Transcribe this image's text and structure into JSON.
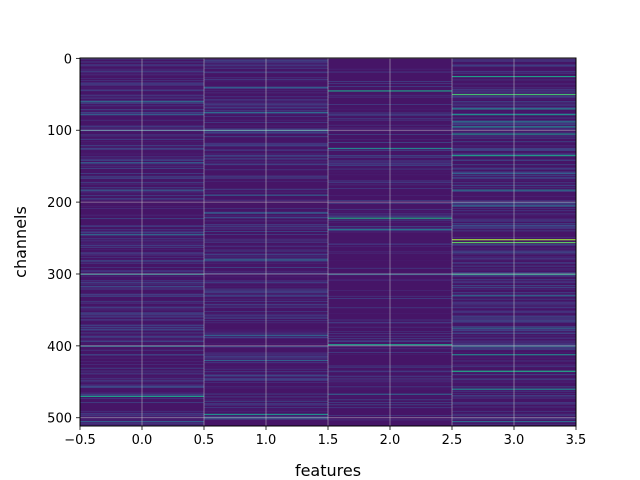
{
  "chart_data": {
    "type": "heatmap",
    "title": "",
    "xlabel": "features",
    "ylabel": "channels",
    "x_columns": [
      0,
      1,
      2,
      3
    ],
    "n_channels": 512,
    "xlim": [
      -0.5,
      3.5
    ],
    "ylim": [
      511.5,
      -0.5
    ],
    "y_inverted": true,
    "xticks": [
      -0.5,
      0.0,
      0.5,
      1.0,
      1.5,
      2.0,
      2.5,
      3.0,
      3.5
    ],
    "xtick_labels": [
      "−0.5",
      "0.0",
      "0.5",
      "1.0",
      "1.5",
      "2.0",
      "2.5",
      "3.0",
      "3.5"
    ],
    "yticks": [
      0,
      100,
      200,
      300,
      400,
      500
    ],
    "ytick_labels": [
      "0",
      "100",
      "200",
      "300",
      "400",
      "500"
    ],
    "grid": true,
    "colormap": "viridis",
    "value_range": [
      0,
      1
    ],
    "background_value": 0.06,
    "noise_level": 0.18,
    "noise_density": [
      0.45,
      0.4,
      0.22,
      0.5
    ],
    "bright_channels": [
      {
        "x": 0,
        "rows": [
          {
            "channel": 60,
            "value": 0.35
          },
          {
            "channel": 78,
            "value": 0.3
          },
          {
            "channel": 100,
            "value": 0.3
          },
          {
            "channel": 145,
            "value": 0.3
          },
          {
            "channel": 183,
            "value": 0.3
          },
          {
            "channel": 245,
            "value": 0.35
          },
          {
            "channel": 300,
            "value": 0.45
          },
          {
            "channel": 400,
            "value": 0.4
          },
          {
            "channel": 470,
            "value": 0.55
          },
          {
            "channel": 505,
            "value": 0.3
          }
        ]
      },
      {
        "x": 1,
        "rows": [
          {
            "channel": 40,
            "value": 0.3
          },
          {
            "channel": 75,
            "value": 0.35
          },
          {
            "channel": 100,
            "value": 0.4
          },
          {
            "channel": 190,
            "value": 0.3
          },
          {
            "channel": 215,
            "value": 0.3
          },
          {
            "channel": 280,
            "value": 0.35
          },
          {
            "channel": 385,
            "value": 0.3
          },
          {
            "channel": 420,
            "value": 0.3
          },
          {
            "channel": 495,
            "value": 0.5
          },
          {
            "channel": 500,
            "value": 0.3
          }
        ]
      },
      {
        "x": 2,
        "rows": [
          {
            "channel": 45,
            "value": 0.55
          },
          {
            "channel": 125,
            "value": 0.45
          },
          {
            "channel": 222,
            "value": 0.6
          },
          {
            "channel": 238,
            "value": 0.4
          },
          {
            "channel": 300,
            "value": 0.35
          },
          {
            "channel": 398,
            "value": 0.55
          },
          {
            "channel": 467,
            "value": 0.3
          }
        ]
      },
      {
        "x": 3,
        "rows": [
          {
            "channel": 25,
            "value": 0.55
          },
          {
            "channel": 50,
            "value": 0.7
          },
          {
            "channel": 70,
            "value": 0.45
          },
          {
            "channel": 78,
            "value": 0.5
          },
          {
            "channel": 88,
            "value": 0.4
          },
          {
            "channel": 95,
            "value": 0.45
          },
          {
            "channel": 105,
            "value": 0.5
          },
          {
            "channel": 135,
            "value": 0.55
          },
          {
            "channel": 160,
            "value": 0.3
          },
          {
            "channel": 183,
            "value": 0.4
          },
          {
            "channel": 205,
            "value": 0.35
          },
          {
            "channel": 252,
            "value": 0.85
          },
          {
            "channel": 256,
            "value": 0.75
          },
          {
            "channel": 300,
            "value": 0.6
          },
          {
            "channel": 330,
            "value": 0.35
          },
          {
            "channel": 375,
            "value": 0.35
          },
          {
            "channel": 400,
            "value": 0.4
          },
          {
            "channel": 412,
            "value": 0.45
          },
          {
            "channel": 435,
            "value": 0.6
          },
          {
            "channel": 460,
            "value": 0.45
          },
          {
            "channel": 505,
            "value": 0.35
          }
        ]
      }
    ]
  }
}
